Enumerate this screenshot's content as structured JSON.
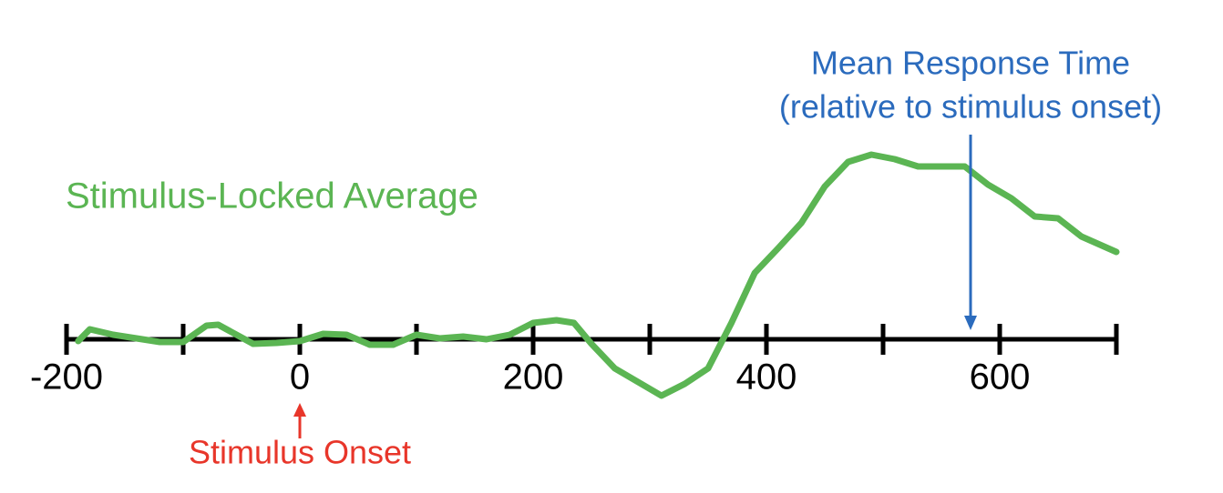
{
  "chart_data": {
    "type": "line",
    "x": [
      -190,
      -180,
      -160,
      -140,
      -120,
      -100,
      -80,
      -70,
      -60,
      -40,
      -20,
      0,
      20,
      40,
      60,
      80,
      100,
      120,
      140,
      160,
      180,
      200,
      220,
      235,
      250,
      270,
      290,
      310,
      330,
      350,
      370,
      390,
      410,
      430,
      450,
      470,
      490,
      510,
      530,
      550,
      570,
      590,
      610,
      630,
      650,
      670,
      700
    ],
    "series": [
      {
        "name": "Stimulus-Locked Average",
        "color": "#5bb553",
        "values": [
          -0.2,
          1.1,
          0.5,
          0.1,
          -0.3,
          -0.3,
          1.5,
          1.6,
          0.9,
          -0.5,
          -0.4,
          -0.2,
          0.6,
          0.5,
          -0.6,
          -0.6,
          0.5,
          0.1,
          0.3,
          0,
          0.5,
          1.8,
          2.1,
          1.8,
          -0.5,
          -3.2,
          -4.7,
          -6.2,
          -4.9,
          -3.2,
          1.8,
          7.3,
          10.0,
          12.8,
          16.8,
          19.5,
          20.3,
          19.8,
          19.0,
          19.0,
          19.0,
          17.0,
          15.5,
          13.5,
          13.3,
          11.3,
          9.6
        ]
      }
    ],
    "xlim": [
      -200,
      700
    ],
    "xticks": [
      -200,
      0,
      200,
      400,
      600
    ],
    "minor_xticks": [
      -100,
      100,
      300,
      500,
      700
    ],
    "ylim": [
      -8,
      24
    ],
    "annotations": [
      {
        "text": [
          "Stimulus Onset"
        ],
        "x": 0,
        "color": "#e8362a",
        "side": "below"
      },
      {
        "text": [
          "Mean Response Time",
          "(relative to stimulus onset)"
        ],
        "x": 575,
        "color": "#2b6bbd",
        "side": "above"
      }
    ]
  }
}
